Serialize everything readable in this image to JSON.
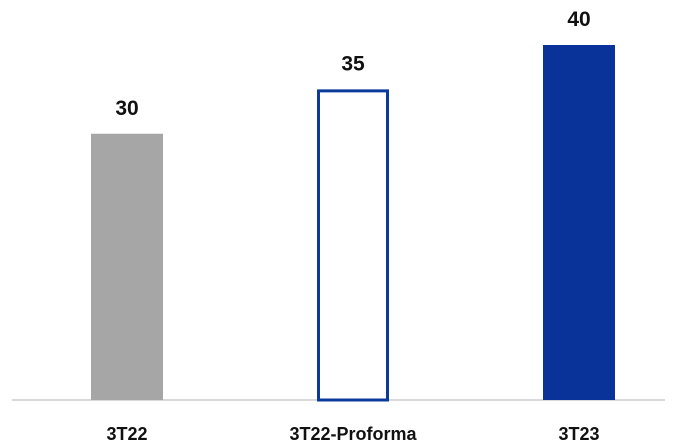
{
  "chart_data": {
    "type": "bar",
    "categories": [
      "3T22",
      "3T22-Proforma",
      "3T23"
    ],
    "values": [
      30,
      35,
      40
    ],
    "data_labels": [
      "30",
      "35",
      "40"
    ],
    "bar_styles": [
      "solid",
      "outline",
      "solid"
    ],
    "colors": [
      "#a6a6a6",
      "#0a3a9c",
      "#0a3399"
    ],
    "baseline_color": "#d9d9d9",
    "grid": false,
    "legend": "none",
    "title": "",
    "xlabel": "",
    "ylabel": ""
  }
}
